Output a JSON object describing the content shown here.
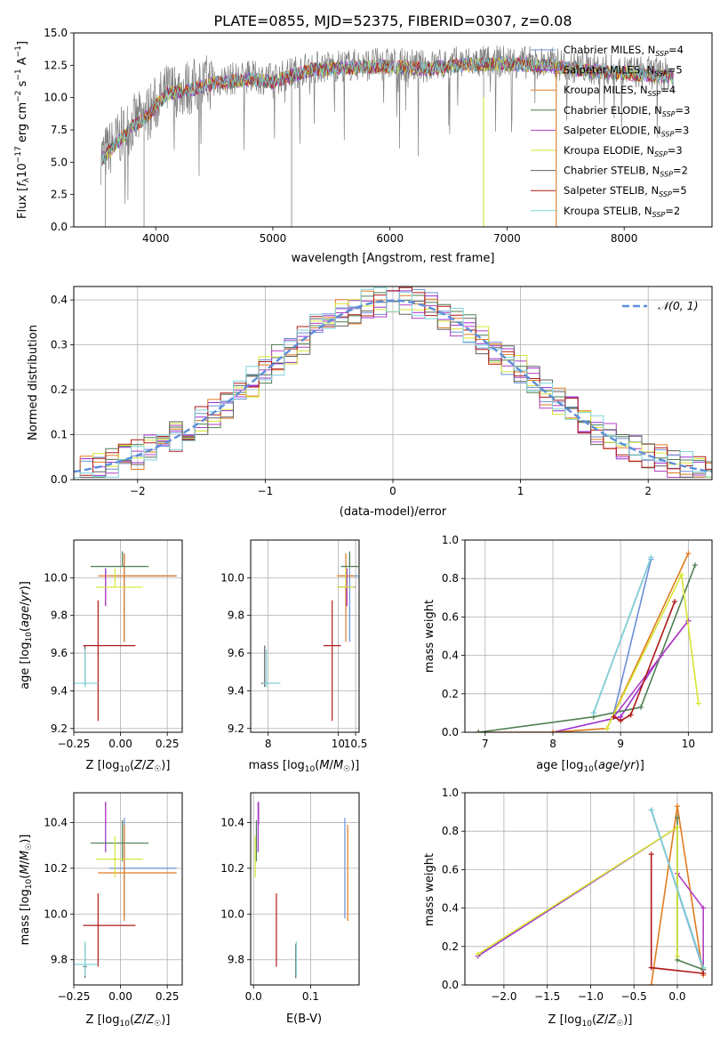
{
  "title": "PLATE=0855, MJD=52375, FIBERID=0307, z=0.08",
  "colors": {
    "Chabrier MILES": "#6b8fd6",
    "Salpeter MILES": "#9b30d0",
    "Kroupa MILES": "#e07b20",
    "Chabrier ELODIE": "#4f7f50",
    "Salpeter ELODIE": "#b040c0",
    "Kroupa ELODIE": "#d6e632",
    "Chabrier STELIB": "#606060",
    "Salpeter STELIB": "#b01818",
    "Kroupa STELIB": "#7fd4dc",
    "normal": "#5b8ddb"
  },
  "chart_data": [
    {
      "type": "line",
      "title": "PLATE=0855, MJD=52375, FIBERID=0307, z=0.08",
      "xlabel": "wavelength [Angstrom, rest frame]",
      "ylabel": "Flux [fλ10⁻¹⁷ erg cm⁻² s⁻¹ A⁻¹]",
      "xlim": [
        3300,
        8750
      ],
      "ylim": [
        0,
        15
      ],
      "xticks": [
        4000,
        5000,
        6000,
        7000,
        8000
      ],
      "yticks": [
        "0.0",
        "2.5",
        "5.0",
        "7.5",
        "10.0",
        "12.5",
        "15.0"
      ],
      "legend_position": "right",
      "legend": [
        "Chabrier MILES, N_SSP=4",
        "Salpeter MILES, N_SSP=5",
        "Kroupa MILES, N_SSP=4",
        "Chabrier ELODIE, N_SSP=3",
        "Salpeter ELODIE, N_SSP=3",
        "Kroupa ELODIE, N_SSP=3",
        "Chabrier STELIB, N_SSP=2",
        "Salpeter STELIB, N_SSP=5",
        "Kroupa STELIB, N_SSP=2"
      ],
      "continuum": {
        "x": [
          3550,
          3650,
          3800,
          3900,
          4000,
          4100,
          4300,
          4500,
          4800,
          5000,
          5300,
          5600,
          6000,
          6300,
          6600,
          7000,
          7400,
          7800,
          8100,
          8400
        ],
        "y": [
          5.5,
          6.5,
          8.0,
          8.5,
          9.5,
          10.5,
          10.8,
          11.3,
          11.6,
          11.4,
          12.3,
          12.5,
          12.6,
          12.4,
          12.7,
          12.8,
          12.6,
          12.2,
          12.0,
          11.8
        ]
      }
    },
    {
      "type": "line",
      "xlabel": "(data-model)/error",
      "ylabel": "Normed distribution",
      "xlim": [
        -2.5,
        2.5
      ],
      "ylim": [
        0,
        0.43
      ],
      "xticks": [
        "−2",
        "−1",
        "0",
        "1",
        "2"
      ],
      "yticks": [
        "0.0",
        "0.1",
        "0.2",
        "0.3",
        "0.4"
      ],
      "legend": [
        "𝒩(0, 1)"
      ],
      "legend_position": "top-right"
    },
    {
      "type": "scatter",
      "xlabel": "Z [log10(Z/Z☉)]",
      "ylabel": "age  [log10(age/yr)]",
      "xlim": [
        -0.25,
        0.33
      ],
      "ylim": [
        9.18,
        10.2
      ],
      "xticks": [
        "−0.25",
        "0.00",
        "0.25"
      ],
      "yticks": [
        "9.2",
        "9.4",
        "9.6",
        "9.8",
        "10.0"
      ]
    },
    {
      "type": "scatter",
      "xlabel": "mass [log10(M/M☉)]",
      "xlim": [
        7.5,
        10.6
      ],
      "ylim": [
        9.18,
        10.2
      ],
      "xticks": [
        "8",
        "10",
        "10.5"
      ],
      "yticks": [
        "9.2",
        "9.4",
        "9.6",
        "9.8",
        "10.0"
      ]
    },
    {
      "type": "line",
      "xlabel": "age  [log10(age/yr)]",
      "ylabel": "mass weight",
      "xlim": [
        6.7,
        10.35
      ],
      "ylim": [
        0,
        1
      ],
      "xticks": [
        "7",
        "8",
        "9",
        "10"
      ],
      "yticks": [
        "0.0",
        "0.2",
        "0.4",
        "0.6",
        "0.8",
        "1.0"
      ]
    },
    {
      "type": "scatter",
      "xlabel": "Z [log10(Z/Z☉)]",
      "ylabel": "mass [log10(M/M☉)]",
      "xlim": [
        -0.25,
        0.33
      ],
      "ylim": [
        9.69,
        10.53
      ],
      "xticks": [
        "−0.25",
        "0.00",
        "0.25"
      ],
      "yticks": [
        "9.8",
        "10.0",
        "10.2",
        "10.4"
      ]
    },
    {
      "type": "scatter",
      "xlabel": "E(B-V)",
      "xlim": [
        -0.005,
        0.185
      ],
      "ylim": [
        9.69,
        10.53
      ],
      "xticks": [
        "0.0",
        "0.1"
      ],
      "yticks": [
        "9.8",
        "10.0",
        "10.2",
        "10.4"
      ]
    },
    {
      "type": "line",
      "xlabel": "Z [log10(Z/Z☉)]",
      "ylabel": "mass weight",
      "xlim": [
        -2.45,
        0.4
      ],
      "ylim": [
        0,
        1
      ],
      "xticks": [
        "−2.0",
        "−1.5",
        "−1.0",
        "−0.5",
        "0.0"
      ],
      "yticks": [
        "0.0",
        "0.2",
        "0.4",
        "0.6",
        "0.8",
        "1.0"
      ]
    }
  ]
}
